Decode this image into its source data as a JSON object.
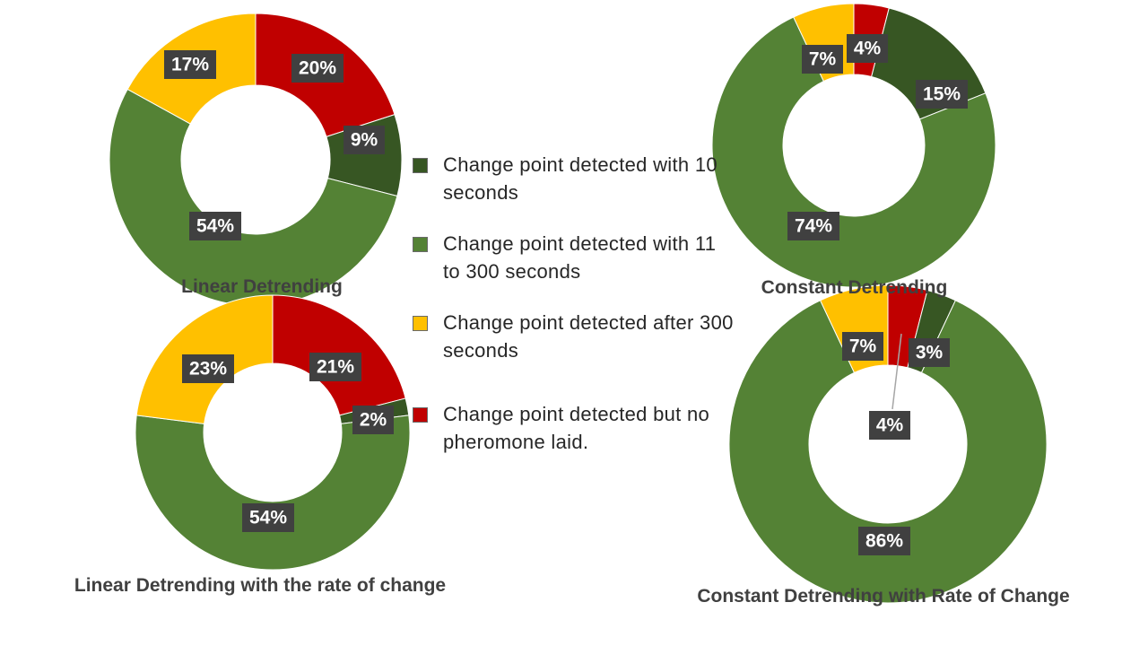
{
  "colors": {
    "dark_green": "#375623",
    "green": "#548235",
    "yellow": "#ffc000",
    "red": "#c00000",
    "label_box": "#404040"
  },
  "legend": [
    {
      "label": "Change point detected with 10 seconds",
      "color": "#375623"
    },
    {
      "label": "Change point detected with 11 to 300 seconds",
      "color": "#548235"
    },
    {
      "label": "Change point detected after 300 seconds",
      "color": "#ffc000"
    },
    {
      "label": "Change point detected but no pheromone laid.",
      "color": "#c00000"
    }
  ],
  "chart_data": [
    {
      "type": "pie",
      "title": "Linear Detrending",
      "categories": [
        "Change point detected but no pheromone laid.",
        "Change point detected with 10 seconds",
        "Change point detected with 11 to 300 seconds",
        "Change point detected after 300 seconds"
      ],
      "values": [
        20,
        9,
        54,
        17
      ],
      "labels": [
        "20%",
        "9%",
        "54%",
        "17%"
      ]
    },
    {
      "type": "pie",
      "title": "Constant Detrending",
      "categories": [
        "Change point detected but no pheromone laid.",
        "Change point detected with 10 seconds",
        "Change point detected with 11 to 300 seconds",
        "Change point detected after 300 seconds"
      ],
      "values": [
        4,
        15,
        74,
        7
      ],
      "labels": [
        "4%",
        "15%",
        "74%",
        "7%"
      ]
    },
    {
      "type": "pie",
      "title": "Linear Detrending with  the rate of change",
      "categories": [
        "Change point detected but no pheromone laid.",
        "Change point detected with 10 seconds",
        "Change point detected with 11 to 300 seconds",
        "Change point detected after 300 seconds"
      ],
      "values": [
        21,
        2,
        54,
        23
      ],
      "labels": [
        "21%",
        "2%",
        "54%",
        "23%"
      ]
    },
    {
      "type": "pie",
      "title": "Constant Detrending with Rate of Change",
      "categories": [
        "Change point detected but no pheromone laid.",
        "Change point detected with 10 seconds",
        "Change point detected with 11 to 300 seconds",
        "Change point detected after 300 seconds"
      ],
      "values": [
        4,
        3,
        86,
        7
      ],
      "labels": [
        "4%",
        "3%",
        "86%",
        "7%"
      ]
    }
  ]
}
